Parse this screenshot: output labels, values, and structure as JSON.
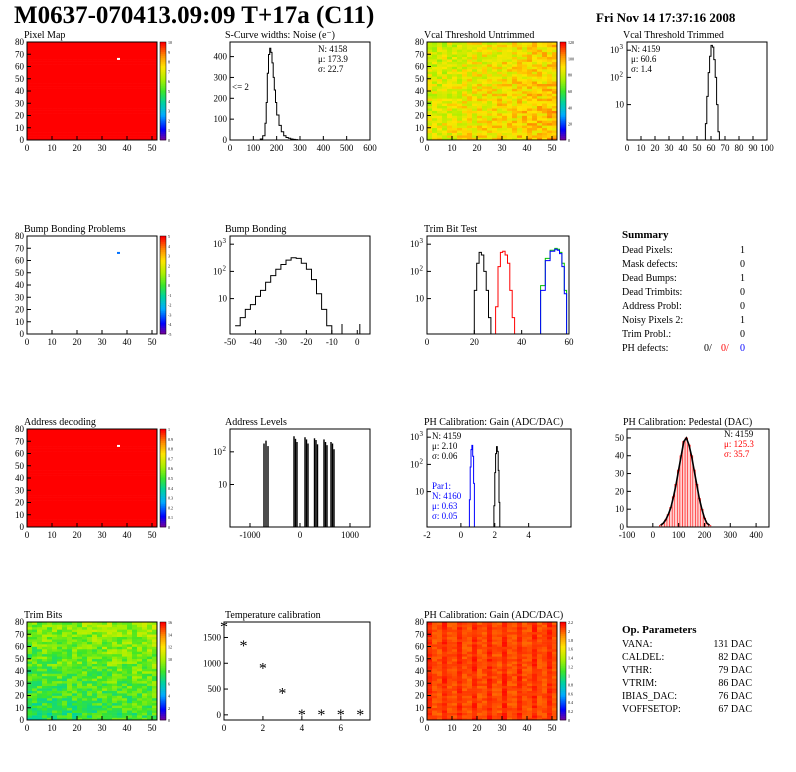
{
  "header": {
    "title": "M0637-070413.09:09 T+17a (C11)",
    "date": "Fri Nov 14 17:37:16 2008"
  },
  "panels": {
    "pixel_map": {
      "title": "Pixel Map",
      "xticks": [
        "0",
        "10",
        "20",
        "30",
        "40",
        "50"
      ],
      "yticks": [
        "0",
        "10",
        "20",
        "30",
        "40",
        "50",
        "60",
        "70",
        "80"
      ],
      "zticks": [
        "0",
        "1",
        "2",
        "3",
        "4",
        "5",
        "6",
        "7",
        "8",
        "9",
        "10"
      ]
    },
    "scurve": {
      "title": "S-Curve widths: Noise (e⁻)",
      "stats": [
        "N: 4158",
        "μ: 173.9",
        "σ: 22.7"
      ],
      "annotation": "<= 2",
      "xticks": [
        "0",
        "100",
        "200",
        "300",
        "400",
        "500",
        "600"
      ],
      "yticks": [
        "0",
        "100",
        "200",
        "300",
        "400"
      ]
    },
    "vcal_untrimmed": {
      "title": "Vcal Threshold Untrimmed",
      "xticks": [
        "0",
        "10",
        "20",
        "30",
        "40",
        "50"
      ],
      "yticks": [
        "0",
        "10",
        "20",
        "30",
        "40",
        "50",
        "60",
        "70",
        "80"
      ],
      "zticks": [
        "0",
        "20",
        "40",
        "60",
        "80",
        "100",
        "120"
      ]
    },
    "vcal_trimmed": {
      "title": "Vcal Threshold Trimmed",
      "stats": [
        "N: 4159",
        "μ: 60.6",
        "σ: 1.4"
      ],
      "xticks": [
        "0",
        "10",
        "20",
        "30",
        "40",
        "50",
        "60",
        "70",
        "80",
        "90",
        "100"
      ],
      "ytick_base": "10",
      "ytick_exps": [
        "",
        "2",
        "3"
      ]
    },
    "bump_problems": {
      "title": "Bump Bonding Problems",
      "xticks": [
        "0",
        "10",
        "20",
        "30",
        "40",
        "50"
      ],
      "yticks": [
        "0",
        "10",
        "20",
        "30",
        "40",
        "50",
        "60",
        "70",
        "80"
      ],
      "zticks": [
        "-5",
        "-4",
        "-3",
        "-2",
        "-1",
        "0",
        "1",
        "2",
        "3",
        "4",
        "5"
      ]
    },
    "bump_bonding": {
      "title": "Bump Bonding",
      "xticks": [
        "-50",
        "-40",
        "-30",
        "-20",
        "-10",
        "0"
      ],
      "ytick_base": "10",
      "ytick_exps": [
        "",
        "2",
        "3"
      ]
    },
    "trim_bit": {
      "title": "Trim Bit Test",
      "xticks": [
        "0",
        "20",
        "40",
        "60"
      ],
      "ytick_base": "10",
      "ytick_exps": [
        "",
        "2",
        "3"
      ]
    },
    "address_decoding": {
      "title": "Address decoding",
      "xticks": [
        "0",
        "10",
        "20",
        "30",
        "40",
        "50"
      ],
      "yticks": [
        "0",
        "10",
        "20",
        "30",
        "40",
        "50",
        "60",
        "70",
        "80"
      ],
      "zticks": [
        "0",
        "0.1",
        "0.2",
        "0.3",
        "0.4",
        "0.5",
        "0.6",
        "0.7",
        "0.8",
        "0.9",
        "1"
      ]
    },
    "address_levels": {
      "title": "Address Levels",
      "xticks": [
        "-1000",
        "0",
        "1000"
      ],
      "ytick_base": "10",
      "ytick_exps": [
        "",
        "2"
      ]
    },
    "ph_gain": {
      "title": "PH Calibration: Gain (ADC/DAC)",
      "stats": [
        "N: 4159",
        "μ: 2.10",
        "σ: 0.06"
      ],
      "stats2": [
        "Par1:",
        "N: 4160",
        "μ: 0.63",
        "σ: 0.05"
      ],
      "xticks": [
        "-2",
        "0",
        "2",
        "4"
      ],
      "ytick_base": "10",
      "ytick_exps": [
        "",
        "2",
        "3"
      ]
    },
    "ph_pedestal": {
      "title": "PH Calibration: Pedestal (DAC)",
      "stats": [
        "N: 4159",
        "μ: 125.3",
        "σ: 35.7"
      ],
      "xticks": [
        "-100",
        "0",
        "100",
        "200",
        "300",
        "400"
      ],
      "yticks": [
        "0",
        "10",
        "20",
        "30",
        "40",
        "50"
      ]
    },
    "trim_bits": {
      "title": "Trim Bits",
      "xticks": [
        "0",
        "10",
        "20",
        "30",
        "40",
        "50"
      ],
      "yticks": [
        "0",
        "10",
        "20",
        "30",
        "40",
        "50",
        "60",
        "70",
        "80"
      ],
      "zticks": [
        "0",
        "2",
        "4",
        "6",
        "8",
        "10",
        "12",
        "14",
        "16"
      ]
    },
    "temperature": {
      "title": "Temperature calibration",
      "xticks": [
        "0",
        "2",
        "4",
        "6"
      ],
      "yticks": [
        "0",
        "500",
        "1000",
        "1500"
      ]
    },
    "ph_gain_map": {
      "title": "PH Calibration: Gain (ADC/DAC)",
      "xticks": [
        "0",
        "10",
        "20",
        "30",
        "40",
        "50"
      ],
      "yticks": [
        "0",
        "10",
        "20",
        "30",
        "40",
        "50",
        "60",
        "70",
        "80"
      ],
      "zticks": [
        "0",
        "0.2",
        "0.4",
        "0.6",
        "0.8",
        "1",
        "1.2",
        "1.4",
        "1.6",
        "1.8",
        "2",
        "2.2"
      ]
    }
  },
  "summary": {
    "title": "Summary",
    "rows": [
      {
        "label": "Dead Pixels:",
        "value": "1"
      },
      {
        "label": "Mask defects:",
        "value": "0"
      },
      {
        "label": "Dead Bumps:",
        "value": "1"
      },
      {
        "label": "Dead Trimbits:",
        "value": "0"
      },
      {
        "label": "Address Probl:",
        "value": "0"
      },
      {
        "label": "Noisy Pixels 2:",
        "value": "1"
      },
      {
        "label": "Trim Probl.:",
        "value": "0"
      }
    ],
    "ph_defects": {
      "label": "PH defects:",
      "v1": "0/",
      "v2": "0/",
      "v3": "0"
    }
  },
  "op_params": {
    "title": "Op. Parameters",
    "rows": [
      {
        "label": "VANA:",
        "value": "131 DAC"
      },
      {
        "label": "CALDEL:",
        "value": "82 DAC"
      },
      {
        "label": "VTHR:",
        "value": "79 DAC"
      },
      {
        "label": "VTRIM:",
        "value": "86 DAC"
      },
      {
        "label": "IBIAS_DAC:",
        "value": "76 DAC"
      },
      {
        "label": "VOFFSETOP:",
        "value": "67 DAC"
      }
    ]
  },
  "colors": {
    "red": "#ff0000",
    "blue": "#0000ff",
    "green": "#00c000",
    "black": "#000000"
  },
  "chart_data": [
    {
      "id": "pixel_map",
      "type": "heatmap",
      "title": "Pixel Map",
      "x_range": [
        0,
        52
      ],
      "y_range": [
        0,
        80
      ],
      "z_range": [
        0,
        10
      ],
      "uniform_value": 10,
      "special_pixels": [
        {
          "x": 36,
          "y": 66,
          "value": 0
        }
      ]
    },
    {
      "id": "scurve",
      "type": "line",
      "title": "S-Curve widths: Noise (e⁻)",
      "xlim": [
        0,
        600
      ],
      "ylim": [
        0,
        470
      ],
      "x": [
        120,
        130,
        140,
        150,
        155,
        160,
        165,
        170,
        175,
        180,
        185,
        190,
        195,
        200,
        210,
        220,
        230,
        240,
        250,
        260,
        270,
        280,
        290
      ],
      "y": [
        0,
        5,
        20,
        80,
        180,
        320,
        410,
        440,
        420,
        370,
        300,
        240,
        180,
        120,
        70,
        40,
        20,
        12,
        8,
        5,
        3,
        2,
        0
      ]
    },
    {
      "id": "vcal_untrimmed",
      "type": "heatmap",
      "title": "Vcal Threshold Untrimmed",
      "x_range": [
        0,
        52
      ],
      "y_range": [
        0,
        80
      ],
      "z_range": [
        0,
        130
      ],
      "value_range": [
        50,
        100
      ]
    },
    {
      "id": "vcal_trimmed",
      "type": "line",
      "title": "Vcal Threshold Trimmed",
      "xlim": [
        0,
        100
      ],
      "y_scale": "log",
      "ylim": [
        0.5,
        2000
      ],
      "x": [
        55,
        56,
        57,
        58,
        59,
        60,
        61,
        62,
        63,
        64,
        65,
        66
      ],
      "y": [
        0,
        2,
        20,
        150,
        600,
        1500,
        1300,
        450,
        100,
        10,
        1,
        0
      ]
    },
    {
      "id": "bump_problems",
      "type": "heatmap",
      "title": "Bump Bonding Problems",
      "x_range": [
        0,
        52
      ],
      "y_range": [
        0,
        80
      ],
      "z_range": [
        -5,
        5
      ],
      "special_pixels": [
        {
          "x": 36,
          "y": 66,
          "value": -3
        }
      ]
    },
    {
      "id": "bump_bonding",
      "type": "line",
      "title": "Bump Bonding",
      "xlim": [
        -50,
        5
      ],
      "y_scale": "log",
      "ylim": [
        0.5,
        2000
      ],
      "x": [
        -48,
        -46,
        -44,
        -42,
        -40,
        -38,
        -36,
        -34,
        -32,
        -30,
        -28,
        -26,
        -24,
        -22,
        -20,
        -18,
        -16,
        -14,
        -12,
        -10
      ],
      "y": [
        1,
        2,
        4,
        6,
        12,
        20,
        40,
        70,
        120,
        180,
        260,
        320,
        300,
        200,
        120,
        50,
        15,
        4,
        1,
        0
      ]
    },
    {
      "id": "trim_bit",
      "type": "line",
      "title": "Trim Bit Test",
      "xlim": [
        0,
        60
      ],
      "y_scale": "log",
      "ylim": [
        0.5,
        2000
      ],
      "series": [
        {
          "color": "black",
          "x": [
            19,
            20,
            21,
            22,
            23,
            24,
            25,
            26,
            27
          ],
          "y": [
            0,
            20,
            200,
            500,
            400,
            100,
            20,
            2,
            0
          ]
        },
        {
          "color": "red",
          "x": [
            28,
            29,
            30,
            31,
            32,
            33,
            34,
            35,
            36,
            37
          ],
          "y": [
            0,
            5,
            150,
            500,
            550,
            400,
            200,
            20,
            2,
            0
          ]
        },
        {
          "color": "green",
          "x": [
            0,
            47,
            48,
            50,
            52,
            54,
            55,
            56,
            57,
            58,
            59
          ],
          "y": [
            0,
            0,
            30,
            300,
            600,
            700,
            650,
            500,
            200,
            20,
            0
          ]
        },
        {
          "color": "blue",
          "x": [
            47,
            48,
            50,
            52,
            54,
            55,
            56,
            57,
            58,
            59
          ],
          "y": [
            0,
            20,
            250,
            550,
            650,
            600,
            450,
            150,
            15,
            0
          ]
        }
      ]
    },
    {
      "id": "address_decoding",
      "type": "heatmap",
      "title": "Address decoding",
      "x_range": [
        0,
        52
      ],
      "y_range": [
        0,
        80
      ],
      "z_range": [
        0,
        1
      ],
      "uniform_value": 1,
      "special_pixels": [
        {
          "x": 36,
          "y": 66,
          "value": 0
        }
      ]
    },
    {
      "id": "address_levels",
      "type": "bar",
      "title": "Address Levels",
      "xlim": [
        -1400,
        1400
      ],
      "y_scale": "log",
      "ylim": [
        0.5,
        500
      ],
      "x": [
        -720,
        -680,
        -640,
        -120,
        -90,
        -60,
        100,
        130,
        160,
        290,
        320,
        350,
        480,
        510,
        540,
        620,
        650,
        680
      ],
      "y": [
        180,
        220,
        150,
        300,
        250,
        200,
        280,
        240,
        180,
        260,
        230,
        170,
        240,
        200,
        160,
        200,
        180,
        120
      ]
    },
    {
      "id": "ph_gain",
      "type": "line",
      "title": "PH Calibration: Gain (ADC/DAC)",
      "xlim": [
        -2,
        6.5
      ],
      "y_scale": "log",
      "ylim": [
        0.5,
        2000
      ],
      "series": [
        {
          "name": "Par1",
          "color": "blue",
          "x": [
            0.45,
            0.5,
            0.55,
            0.6,
            0.65,
            0.7,
            0.75,
            0.8
          ],
          "y": [
            0,
            5,
            80,
            350,
            500,
            200,
            20,
            0
          ]
        },
        {
          "color": "black",
          "x": [
            1.9,
            1.95,
            2.0,
            2.05,
            2.1,
            2.15,
            2.2,
            2.25,
            2.3
          ],
          "y": [
            0,
            3,
            50,
            250,
            450,
            300,
            60,
            4,
            0
          ]
        }
      ]
    },
    {
      "id": "ph_pedestal",
      "type": "bar",
      "title": "PH Calibration: Pedestal (DAC)",
      "xlim": [
        -100,
        450
      ],
      "ylim": [
        0,
        55
      ],
      "x": [
        30,
        40,
        50,
        60,
        70,
        80,
        90,
        100,
        110,
        120,
        130,
        140,
        150,
        160,
        170,
        180,
        190,
        200,
        210,
        220
      ],
      "y": [
        1,
        2,
        4,
        7,
        11,
        17,
        24,
        32,
        40,
        48,
        50,
        46,
        40,
        32,
        24,
        16,
        10,
        5,
        2,
        1
      ]
    },
    {
      "id": "trim_bits",
      "type": "heatmap",
      "title": "Trim Bits",
      "x_range": [
        0,
        52
      ],
      "y_range": [
        0,
        80
      ],
      "z_range": [
        0,
        16
      ],
      "value_range": [
        6,
        12
      ]
    },
    {
      "id": "temperature",
      "type": "scatter",
      "title": "Temperature calibration",
      "xlim": [
        0,
        7.5
      ],
      "ylim": [
        -100,
        1800
      ],
      "x": [
        0,
        1,
        2,
        3,
        4,
        5,
        6,
        7
      ],
      "y": [
        1700,
        1330,
        900,
        410,
        0,
        0,
        0,
        0
      ]
    },
    {
      "id": "ph_gain_map",
      "type": "heatmap",
      "title": "PH Calibration: Gain (ADC/DAC)",
      "x_range": [
        0,
        52
      ],
      "y_range": [
        0,
        80
      ],
      "z_range": [
        0,
        2.2
      ],
      "value_range": [
        1.9,
        2.2
      ]
    }
  ]
}
